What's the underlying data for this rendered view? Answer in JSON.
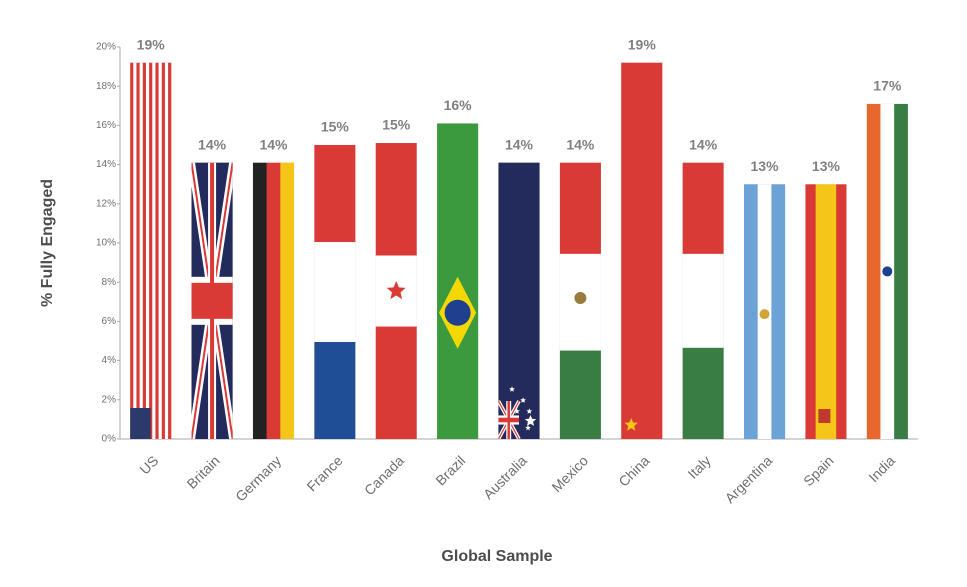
{
  "chart_data": {
    "type": "bar",
    "categories": [
      "US",
      "Britain",
      "Germany",
      "France",
      "Canada",
      "Brazil",
      "Australia",
      "Mexico",
      "China",
      "Italy",
      "Argentina",
      "Spain",
      "India"
    ],
    "values": [
      19.2,
      14.1,
      14.1,
      15.0,
      15.1,
      16.1,
      14.1,
      14.1,
      19.2,
      14.1,
      13.0,
      13.0,
      17.1
    ],
    "value_labels": [
      "19%",
      "14%",
      "14%",
      "15%",
      "15%",
      "16%",
      "14%",
      "14%",
      "19%",
      "14%",
      "13%",
      "13%",
      "17%"
    ],
    "ylim": [
      0,
      20
    ],
    "yticks": [
      {
        "value": 0,
        "label": "0%"
      },
      {
        "value": 2,
        "label": "2%"
      },
      {
        "value": 4,
        "label": "4%"
      },
      {
        "value": 6,
        "label": "6%"
      },
      {
        "value": 8,
        "label": "8%"
      },
      {
        "value": 10,
        "label": "10%"
      },
      {
        "value": 12,
        "label": "12%"
      },
      {
        "value": 14,
        "label": "14%"
      },
      {
        "value": 16,
        "label": "16%"
      },
      {
        "value": 18,
        "label": "18%"
      },
      {
        "value": 20,
        "label": "20%"
      }
    ],
    "y_label": "% Fully Engaged",
    "x_label": "Global Sample"
  }
}
